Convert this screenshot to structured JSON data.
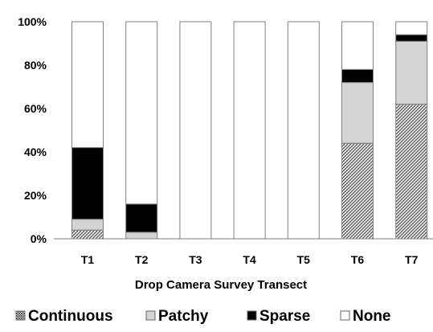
{
  "chart_data": {
    "type": "bar",
    "stacked": true,
    "percent_axis": true,
    "title": "",
    "xlabel": "Drop Camera Survey Transect",
    "ylabel": "",
    "ylim": [
      0,
      100
    ],
    "yticks": [
      "0%",
      "20%",
      "40%",
      "60%",
      "80%",
      "100%"
    ],
    "categories": [
      "T1",
      "T2",
      "T3",
      "T4",
      "T5",
      "T6",
      "T7"
    ],
    "series": [
      {
        "name": "Continuous",
        "values": [
          4,
          0,
          0,
          0,
          0,
          44,
          62
        ],
        "pattern": "crosshatch",
        "color": "#ffffff"
      },
      {
        "name": "Patchy",
        "values": [
          5,
          3,
          0,
          0,
          0,
          28,
          29
        ],
        "pattern": "solid",
        "color": "#d4d4d4"
      },
      {
        "name": "Sparse",
        "values": [
          33,
          13,
          0,
          0,
          0,
          6,
          3
        ],
        "pattern": "solid",
        "color": "#000000"
      },
      {
        "name": "None",
        "values": [
          58,
          84,
          100,
          100,
          100,
          22,
          6
        ],
        "pattern": "solid",
        "color": "#ffffff"
      }
    ],
    "legend_position": "bottom",
    "grid": false
  }
}
